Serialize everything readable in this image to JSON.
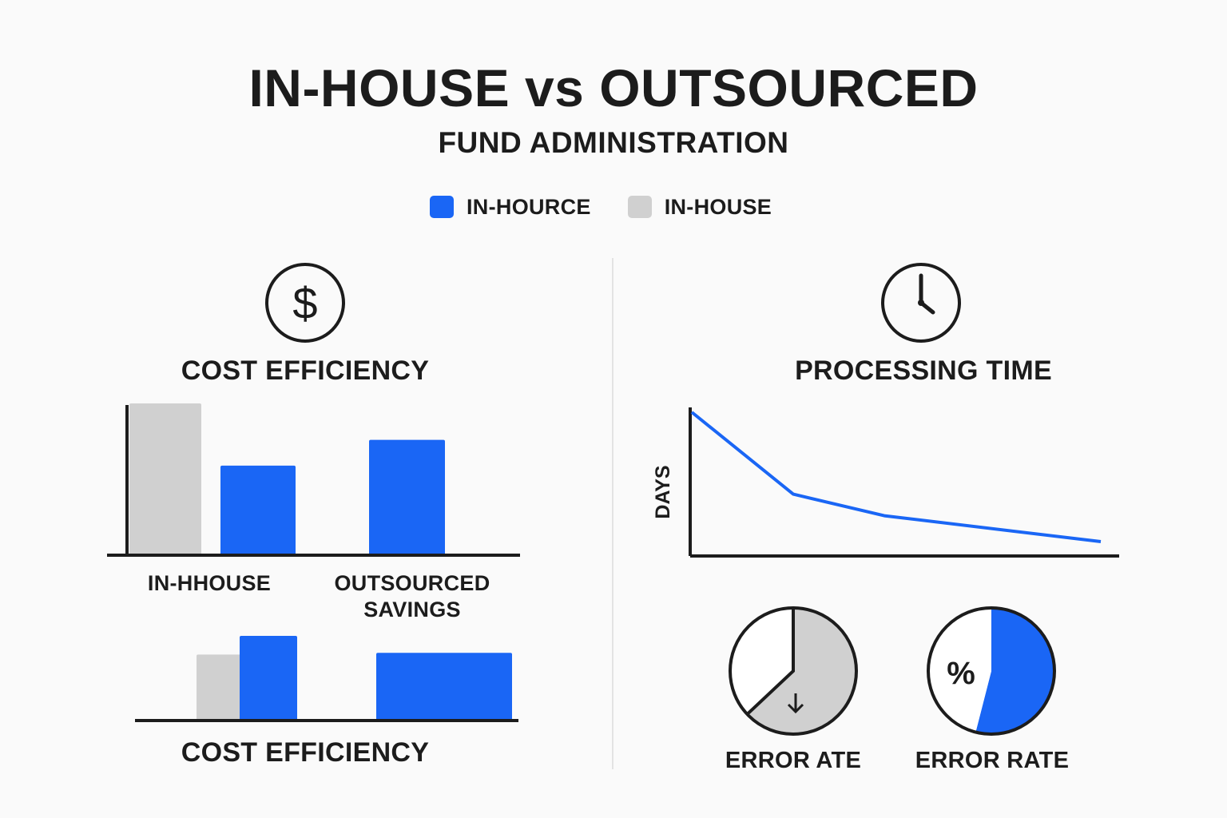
{
  "header": {
    "title": "IN-HOUSE vs OUTSOURCED",
    "subtitle": "FUND ADMINISTRATION"
  },
  "legend": [
    {
      "label": "IN-HOURCE",
      "color": "#1a66f5"
    },
    {
      "label": "IN-HOUSE",
      "color": "#d0d0d0"
    }
  ],
  "colors": {
    "accent": "#1a66f5",
    "neutral": "#d0d0d0",
    "text": "#1c1c1c",
    "axis": "#1c1c1c"
  },
  "icons": {
    "cost": "dollar-circle-icon",
    "time": "clock-icon"
  },
  "chart_data": [
    {
      "type": "bar",
      "title": "COST EFFICIENCY",
      "categories": [
        "IN-HHOUSE",
        "OUTSOURCED SAVINGS"
      ],
      "series": [
        {
          "color": "#d0d0d0",
          "values": [
            100,
            null
          ]
        },
        {
          "color": "#1a66f5",
          "values": [
            59,
            76
          ]
        }
      ],
      "ylim": [
        0,
        100
      ],
      "axis_labels": false
    },
    {
      "type": "bar",
      "title": "COST EFFICIENCY",
      "categories": [
        "",
        ""
      ],
      "series": [
        {
          "color": "#d0d0d0",
          "values": [
            78,
            null
          ]
        },
        {
          "color": "#1a66f5",
          "values": [
            100,
            80
          ]
        }
      ],
      "ylim": [
        0,
        100
      ]
    },
    {
      "type": "line",
      "title": "PROCESSING TIME",
      "ylabel": "DAYS",
      "xlabel": "",
      "x": [
        0,
        1,
        2,
        3
      ],
      "y": [
        100,
        43,
        28,
        10
      ],
      "ylim": [
        0,
        120
      ],
      "color": "#1a66f5"
    },
    {
      "type": "pie",
      "title": "ERROR ATE",
      "slices": [
        {
          "value": 63,
          "color": "#d0d0d0"
        },
        {
          "value": 37,
          "color": "#ffffff"
        }
      ],
      "icon": "arrow-down-icon"
    },
    {
      "type": "pie",
      "title": "ERROR RATE",
      "slices": [
        {
          "value": 54,
          "color": "#1a66f5"
        },
        {
          "value": 46,
          "color": "#ffffff"
        }
      ],
      "symbol": "%"
    }
  ]
}
